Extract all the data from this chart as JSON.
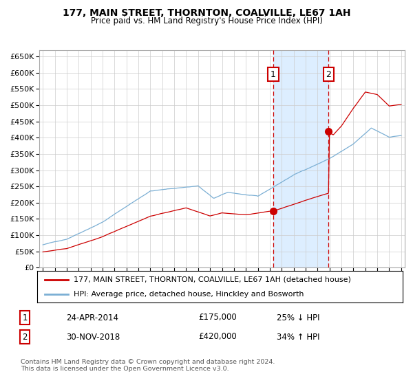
{
  "title": "177, MAIN STREET, THORNTON, COALVILLE, LE67 1AH",
  "subtitle": "Price paid vs. HM Land Registry's House Price Index (HPI)",
  "legend_property": "177, MAIN STREET, THORNTON, COALVILLE, LE67 1AH (detached house)",
  "legend_hpi": "HPI: Average price, detached house, Hinckley and Bosworth",
  "annotation1_label": "1",
  "annotation1_date": "24-APR-2014",
  "annotation1_price": "£175,000",
  "annotation1_hpi": "25% ↓ HPI",
  "annotation2_label": "2",
  "annotation2_date": "30-NOV-2018",
  "annotation2_price": "£420,000",
  "annotation2_hpi": "34% ↑ HPI",
  "footer": "Contains HM Land Registry data © Crown copyright and database right 2024.\nThis data is licensed under the Open Government Licence v3.0.",
  "hpi_color": "#7bafd4",
  "property_color": "#cc0000",
  "dot_color": "#cc0000",
  "vline_color": "#cc0000",
  "shade_color": "#ddeeff",
  "annotation_box_color": "#cc0000",
  "ylim": [
    0,
    670000
  ],
  "yticks": [
    0,
    50000,
    100000,
    150000,
    200000,
    250000,
    300000,
    350000,
    400000,
    450000,
    500000,
    550000,
    600000,
    650000
  ],
  "year_start": 1995,
  "year_end": 2025,
  "sale1_year": 2014.29,
  "sale2_year": 2018.92,
  "sale1_price": 175000,
  "sale2_price": 420000,
  "background_color": "#ffffff",
  "grid_color": "#cccccc"
}
